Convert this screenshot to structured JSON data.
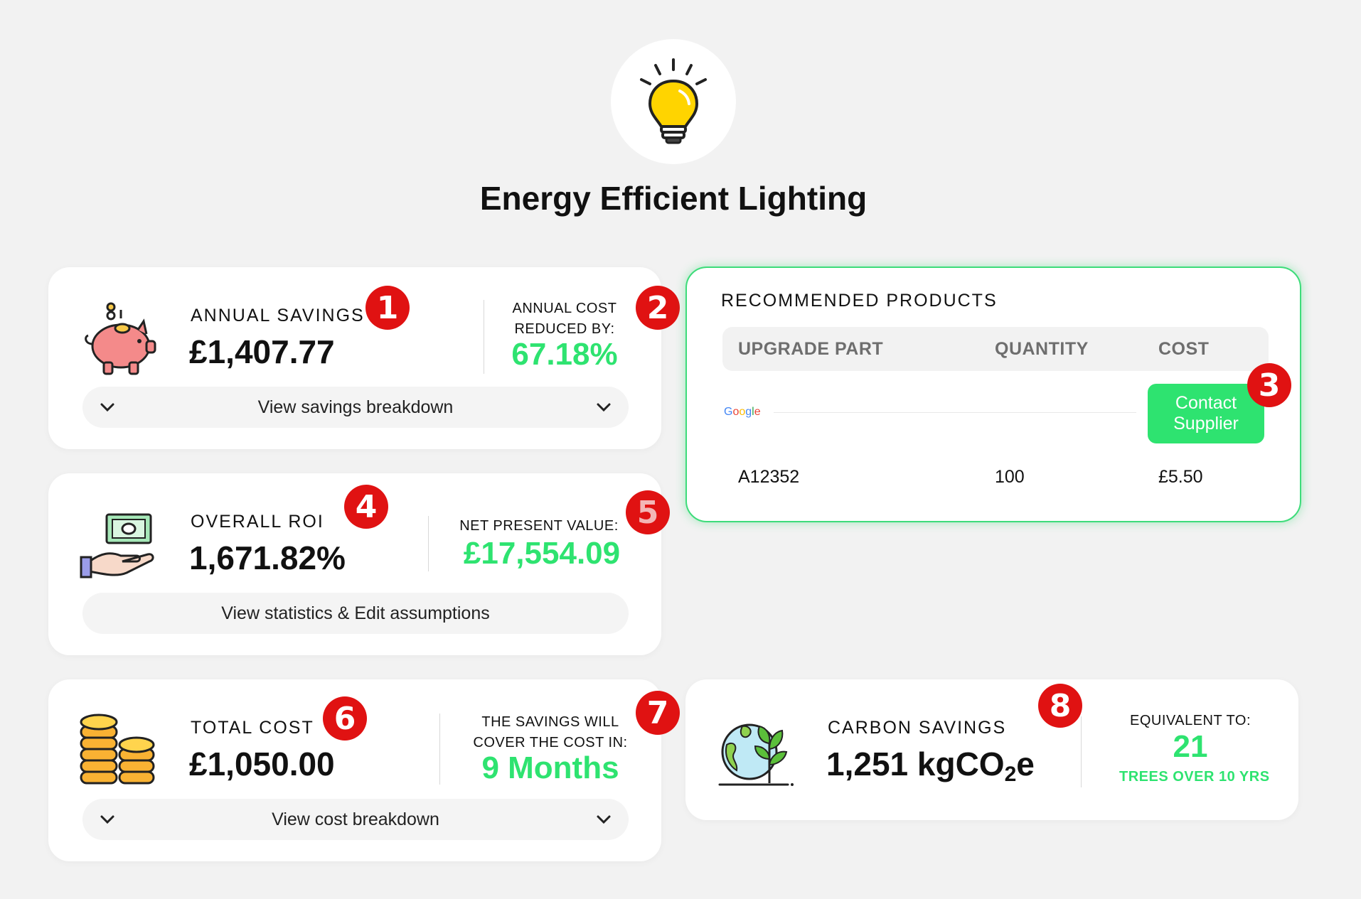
{
  "header": {
    "icon": "lightbulb-icon",
    "title": "Energy Efficient Lighting"
  },
  "colors": {
    "accent_green": "#2ee370",
    "badge_red": "#e01212"
  },
  "annual_savings": {
    "icon": "piggy-bank-icon",
    "label": "ANNUAL SAVINGS",
    "value": "£1,407.77",
    "side_label": "ANNUAL COST REDUCED BY:",
    "side_value": "67.18%",
    "button_label": "View savings breakdown",
    "badge_left": "1",
    "badge_right": "2"
  },
  "roi": {
    "icon": "money-hand-icon",
    "label": "OVERALL ROI",
    "value": "1,671.82%",
    "side_label": "NET PRESENT VALUE:",
    "side_value": "£17,554.09",
    "button_label": "View statistics & Edit assumptions",
    "badge_left": "4",
    "badge_right": "5"
  },
  "total_cost": {
    "icon": "coins-icon",
    "label": "TOTAL COST",
    "value": "£1,050.00",
    "side_label": "THE SAVINGS WILL COVER THE COST IN:",
    "side_value": "9 Months",
    "button_label": "View cost breakdown",
    "badge_left": "6",
    "badge_right": "7"
  },
  "products": {
    "title": "RECOMMENDED PRODUCTS",
    "columns": [
      "UPGRADE PART",
      "QUANTITY",
      "COST"
    ],
    "supplier_logo": "Google",
    "contact_button": "Contact Supplier",
    "rows": [
      {
        "part": "A12352",
        "quantity": "100",
        "cost": "£5.50"
      }
    ],
    "badge": "3"
  },
  "carbon": {
    "icon": "globe-plant-icon",
    "label": "CARBON SAVINGS",
    "value_main": "1,251 kgCO",
    "value_sub": "2",
    "value_tail": "e",
    "side_label": "EQUIVALENT TO:",
    "side_value": "21",
    "side_unit": "TREES OVER 10 YRS",
    "badge": "8"
  }
}
